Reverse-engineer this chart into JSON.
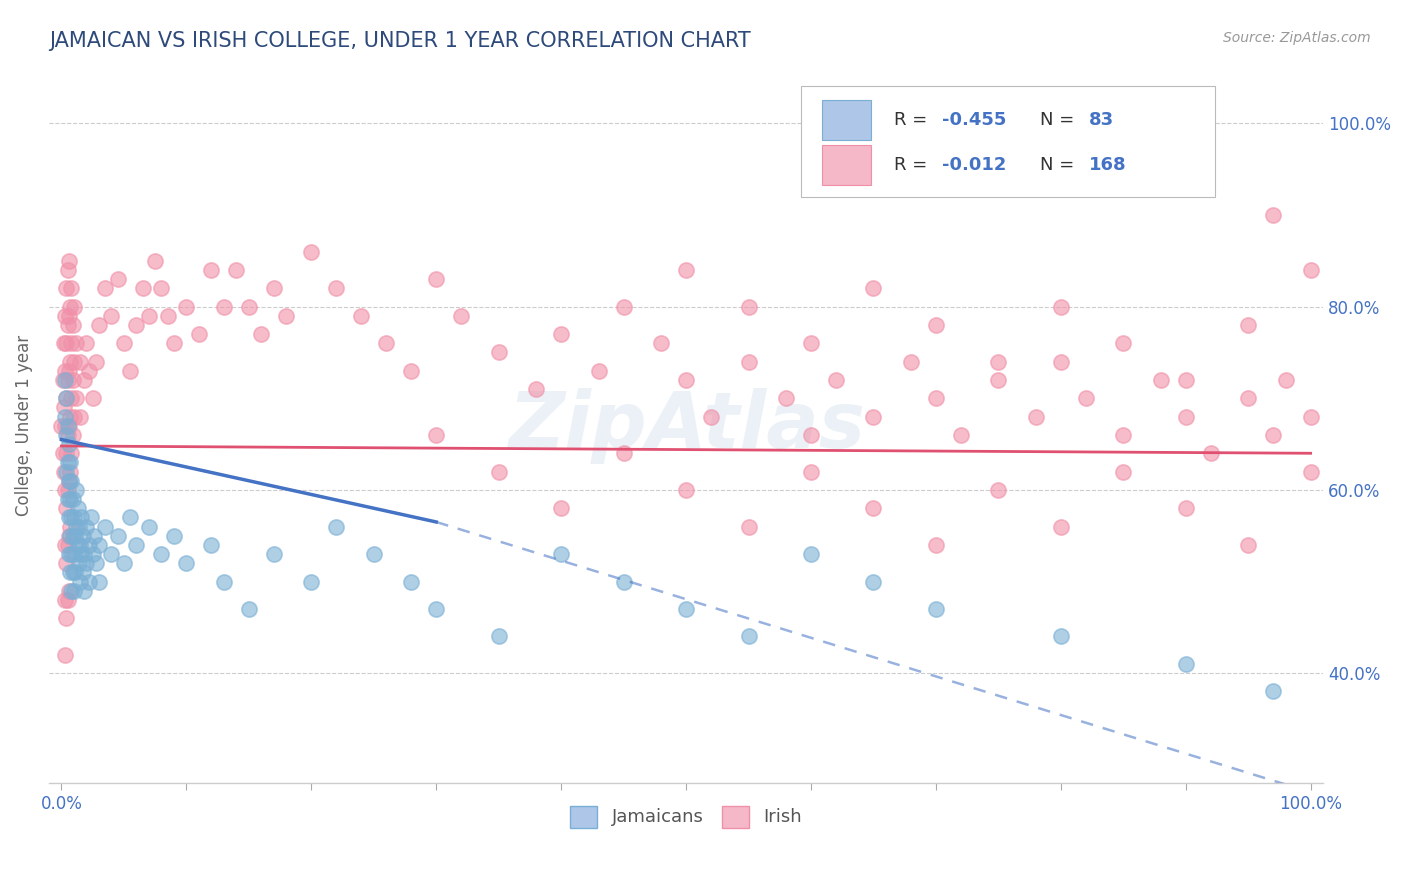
{
  "title": "JAMAICAN VS IRISH COLLEGE, UNDER 1 YEAR CORRELATION CHART",
  "title_color": "#2d4a7a",
  "ylabel": "College, Under 1 year",
  "source_text": "Source: ZipAtlas.com",
  "xlim": [
    0.0,
    1.0
  ],
  "ylim": [
    0.28,
    1.06
  ],
  "y_ticks": [
    0.4,
    0.6,
    0.8,
    1.0
  ],
  "y_tick_labels": [
    "40.0%",
    "60.0%",
    "80.0%",
    "100.0%"
  ],
  "jamaican_R": -0.455,
  "jamaican_N": 83,
  "irish_R": -0.012,
  "irish_N": 168,
  "jamaican_color": "#aec6e8",
  "irish_color": "#f4b8c8",
  "jamaican_line_color": "#4472c4",
  "irish_line_color": "#e05070",
  "jamaican_scatter_color": "#7aafd4",
  "irish_scatter_color": "#f090a8",
  "background_color": "#ffffff",
  "grid_color": "#cccccc",
  "watermark": "ZipAtlas",
  "jamaican_line_start_x": 0.0,
  "jamaican_line_start_y": 0.655,
  "jamaican_line_end_solid_x": 0.3,
  "jamaican_line_end_solid_y": 0.565,
  "jamaican_line_end_dashed_x": 1.0,
  "jamaican_line_end_dashed_y": 0.27,
  "irish_line_start_x": 0.0,
  "irish_line_start_y": 0.648,
  "irish_line_end_x": 1.0,
  "irish_line_end_y": 0.64,
  "jamaican_points": [
    [
      0.003,
      0.72
    ],
    [
      0.003,
      0.68
    ],
    [
      0.004,
      0.7
    ],
    [
      0.004,
      0.66
    ],
    [
      0.004,
      0.62
    ],
    [
      0.005,
      0.67
    ],
    [
      0.005,
      0.63
    ],
    [
      0.005,
      0.59
    ],
    [
      0.006,
      0.65
    ],
    [
      0.006,
      0.61
    ],
    [
      0.006,
      0.57
    ],
    [
      0.006,
      0.53
    ],
    [
      0.007,
      0.63
    ],
    [
      0.007,
      0.59
    ],
    [
      0.007,
      0.55
    ],
    [
      0.007,
      0.51
    ],
    [
      0.008,
      0.61
    ],
    [
      0.008,
      0.57
    ],
    [
      0.008,
      0.53
    ],
    [
      0.008,
      0.49
    ],
    [
      0.009,
      0.59
    ],
    [
      0.009,
      0.55
    ],
    [
      0.009,
      0.51
    ],
    [
      0.01,
      0.57
    ],
    [
      0.01,
      0.53
    ],
    [
      0.01,
      0.49
    ],
    [
      0.011,
      0.55
    ],
    [
      0.011,
      0.51
    ],
    [
      0.012,
      0.6
    ],
    [
      0.012,
      0.56
    ],
    [
      0.013,
      0.58
    ],
    [
      0.013,
      0.54
    ],
    [
      0.014,
      0.56
    ],
    [
      0.014,
      0.52
    ],
    [
      0.015,
      0.54
    ],
    [
      0.015,
      0.5
    ],
    [
      0.016,
      0.57
    ],
    [
      0.016,
      0.53
    ],
    [
      0.017,
      0.55
    ],
    [
      0.017,
      0.51
    ],
    [
      0.018,
      0.53
    ],
    [
      0.018,
      0.49
    ],
    [
      0.02,
      0.56
    ],
    [
      0.02,
      0.52
    ],
    [
      0.022,
      0.54
    ],
    [
      0.022,
      0.5
    ],
    [
      0.024,
      0.57
    ],
    [
      0.025,
      0.53
    ],
    [
      0.026,
      0.55
    ],
    [
      0.028,
      0.52
    ],
    [
      0.03,
      0.54
    ],
    [
      0.03,
      0.5
    ],
    [
      0.035,
      0.56
    ],
    [
      0.04,
      0.53
    ],
    [
      0.045,
      0.55
    ],
    [
      0.05,
      0.52
    ],
    [
      0.055,
      0.57
    ],
    [
      0.06,
      0.54
    ],
    [
      0.07,
      0.56
    ],
    [
      0.08,
      0.53
    ],
    [
      0.09,
      0.55
    ],
    [
      0.1,
      0.52
    ],
    [
      0.12,
      0.54
    ],
    [
      0.13,
      0.5
    ],
    [
      0.15,
      0.47
    ],
    [
      0.17,
      0.53
    ],
    [
      0.2,
      0.5
    ],
    [
      0.22,
      0.56
    ],
    [
      0.25,
      0.53
    ],
    [
      0.28,
      0.5
    ],
    [
      0.3,
      0.47
    ],
    [
      0.35,
      0.44
    ],
    [
      0.4,
      0.53
    ],
    [
      0.45,
      0.5
    ],
    [
      0.5,
      0.47
    ],
    [
      0.55,
      0.44
    ],
    [
      0.6,
      0.53
    ],
    [
      0.65,
      0.5
    ],
    [
      0.7,
      0.47
    ],
    [
      0.8,
      0.44
    ],
    [
      0.9,
      0.41
    ],
    [
      0.97,
      0.38
    ]
  ],
  "irish_points": [
    [
      0.0,
      0.67
    ],
    [
      0.001,
      0.72
    ],
    [
      0.001,
      0.64
    ],
    [
      0.002,
      0.76
    ],
    [
      0.002,
      0.69
    ],
    [
      0.002,
      0.62
    ],
    [
      0.003,
      0.79
    ],
    [
      0.003,
      0.73
    ],
    [
      0.003,
      0.67
    ],
    [
      0.003,
      0.6
    ],
    [
      0.003,
      0.54
    ],
    [
      0.003,
      0.48
    ],
    [
      0.003,
      0.42
    ],
    [
      0.004,
      0.82
    ],
    [
      0.004,
      0.76
    ],
    [
      0.004,
      0.7
    ],
    [
      0.004,
      0.64
    ],
    [
      0.004,
      0.58
    ],
    [
      0.004,
      0.52
    ],
    [
      0.004,
      0.46
    ],
    [
      0.005,
      0.84
    ],
    [
      0.005,
      0.78
    ],
    [
      0.005,
      0.72
    ],
    [
      0.005,
      0.66
    ],
    [
      0.005,
      0.6
    ],
    [
      0.005,
      0.54
    ],
    [
      0.005,
      0.48
    ],
    [
      0.006,
      0.85
    ],
    [
      0.006,
      0.79
    ],
    [
      0.006,
      0.73
    ],
    [
      0.006,
      0.67
    ],
    [
      0.006,
      0.61
    ],
    [
      0.006,
      0.55
    ],
    [
      0.006,
      0.49
    ],
    [
      0.007,
      0.8
    ],
    [
      0.007,
      0.74
    ],
    [
      0.007,
      0.68
    ],
    [
      0.007,
      0.62
    ],
    [
      0.007,
      0.56
    ],
    [
      0.008,
      0.82
    ],
    [
      0.008,
      0.76
    ],
    [
      0.008,
      0.7
    ],
    [
      0.008,
      0.64
    ],
    [
      0.009,
      0.78
    ],
    [
      0.009,
      0.72
    ],
    [
      0.009,
      0.66
    ],
    [
      0.01,
      0.8
    ],
    [
      0.01,
      0.74
    ],
    [
      0.01,
      0.68
    ],
    [
      0.012,
      0.76
    ],
    [
      0.012,
      0.7
    ],
    [
      0.015,
      0.74
    ],
    [
      0.015,
      0.68
    ],
    [
      0.018,
      0.72
    ],
    [
      0.02,
      0.76
    ],
    [
      0.022,
      0.73
    ],
    [
      0.025,
      0.7
    ],
    [
      0.028,
      0.74
    ],
    [
      0.03,
      0.78
    ],
    [
      0.035,
      0.82
    ],
    [
      0.04,
      0.79
    ],
    [
      0.045,
      0.83
    ],
    [
      0.05,
      0.76
    ],
    [
      0.055,
      0.73
    ],
    [
      0.06,
      0.78
    ],
    [
      0.065,
      0.82
    ],
    [
      0.07,
      0.79
    ],
    [
      0.075,
      0.85
    ],
    [
      0.08,
      0.82
    ],
    [
      0.085,
      0.79
    ],
    [
      0.09,
      0.76
    ],
    [
      0.1,
      0.8
    ],
    [
      0.11,
      0.77
    ],
    [
      0.12,
      0.84
    ],
    [
      0.13,
      0.8
    ],
    [
      0.14,
      0.84
    ],
    [
      0.15,
      0.8
    ],
    [
      0.16,
      0.77
    ],
    [
      0.17,
      0.82
    ],
    [
      0.18,
      0.79
    ],
    [
      0.2,
      0.86
    ],
    [
      0.22,
      0.82
    ],
    [
      0.24,
      0.79
    ],
    [
      0.26,
      0.76
    ],
    [
      0.28,
      0.73
    ],
    [
      0.3,
      0.83
    ],
    [
      0.32,
      0.79
    ],
    [
      0.35,
      0.75
    ],
    [
      0.38,
      0.71
    ],
    [
      0.4,
      0.77
    ],
    [
      0.43,
      0.73
    ],
    [
      0.45,
      0.8
    ],
    [
      0.48,
      0.76
    ],
    [
      0.5,
      0.72
    ],
    [
      0.52,
      0.68
    ],
    [
      0.55,
      0.74
    ],
    [
      0.58,
      0.7
    ],
    [
      0.6,
      0.66
    ],
    [
      0.62,
      0.72
    ],
    [
      0.65,
      0.68
    ],
    [
      0.68,
      0.74
    ],
    [
      0.7,
      0.7
    ],
    [
      0.72,
      0.66
    ],
    [
      0.75,
      0.72
    ],
    [
      0.78,
      0.68
    ],
    [
      0.8,
      0.74
    ],
    [
      0.82,
      0.7
    ],
    [
      0.85,
      0.66
    ],
    [
      0.88,
      0.72
    ],
    [
      0.9,
      0.68
    ],
    [
      0.92,
      0.64
    ],
    [
      0.95,
      0.7
    ],
    [
      0.97,
      0.66
    ],
    [
      0.98,
      0.72
    ],
    [
      1.0,
      0.68
    ],
    [
      0.3,
      0.66
    ],
    [
      0.35,
      0.62
    ],
    [
      0.4,
      0.58
    ],
    [
      0.45,
      0.64
    ],
    [
      0.5,
      0.6
    ],
    [
      0.55,
      0.56
    ],
    [
      0.6,
      0.62
    ],
    [
      0.65,
      0.58
    ],
    [
      0.7,
      0.54
    ],
    [
      0.75,
      0.6
    ],
    [
      0.8,
      0.56
    ],
    [
      0.85,
      0.62
    ],
    [
      0.9,
      0.58
    ],
    [
      0.95,
      0.54
    ],
    [
      1.0,
      0.62
    ],
    [
      0.5,
      0.84
    ],
    [
      0.55,
      0.8
    ],
    [
      0.6,
      0.76
    ],
    [
      0.65,
      0.82
    ],
    [
      0.7,
      0.78
    ],
    [
      0.75,
      0.74
    ],
    [
      0.8,
      0.8
    ],
    [
      0.85,
      0.76
    ],
    [
      0.9,
      0.72
    ],
    [
      0.95,
      0.78
    ],
    [
      1.0,
      0.84
    ],
    [
      0.97,
      0.9
    ]
  ]
}
